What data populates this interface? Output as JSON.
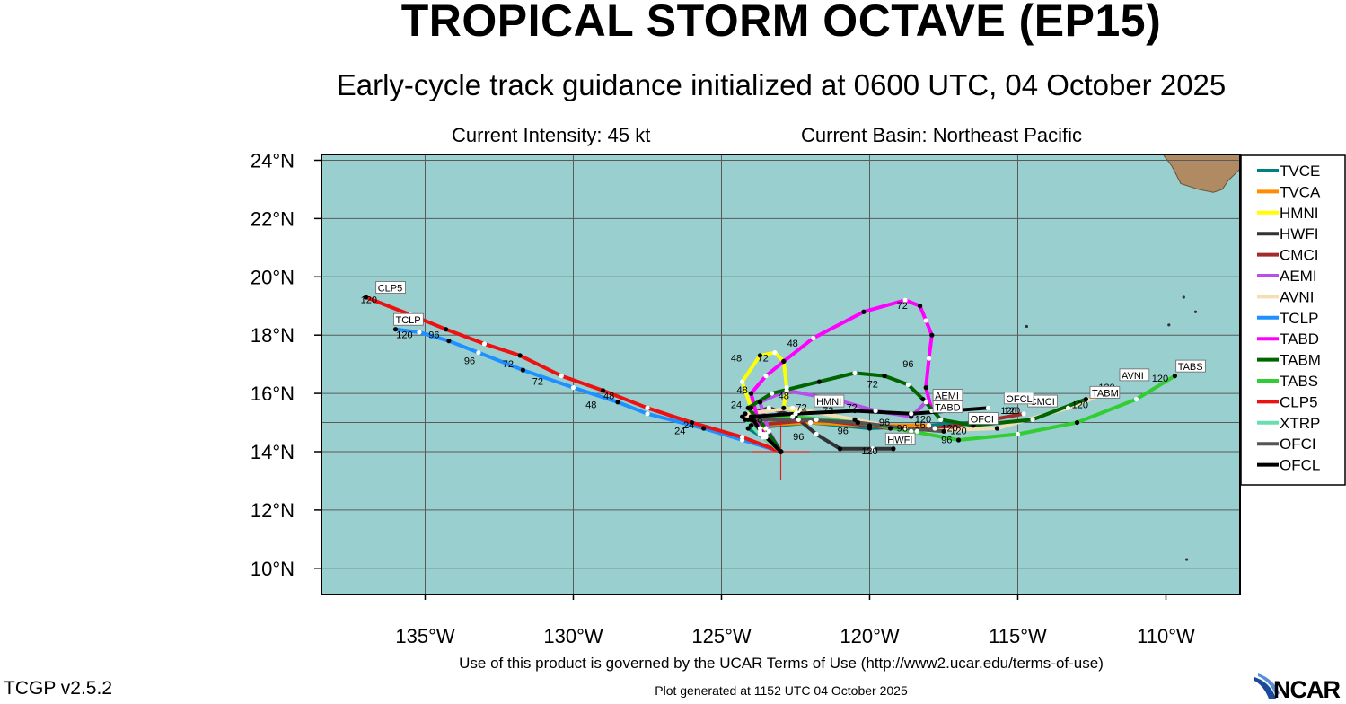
{
  "header": {
    "title": "TROPICAL STORM OCTAVE (EP15)",
    "subtitle": "Early-cycle track guidance initialized at 0600 UTC, 04 October 2025",
    "current_intensity": "Current Intensity: 45 kt",
    "current_basin": "Current Basin: Northeast Pacific"
  },
  "footer": {
    "terms": "Use of this product is governed by the UCAR Terms of Use (http://www2.ucar.edu/terms-of-use)",
    "version": "TCGP v2.5.2",
    "generated": "Plot generated at 1152 UTC   04 October 2025",
    "logo_text": "NCAR"
  },
  "colors": {
    "ocean": "#99cfcf",
    "land": "#b08a62",
    "grid": "#5a5a5a",
    "initial_position": "#e02020"
  },
  "chart_data": {
    "type": "map",
    "x_axis": {
      "range": [
        -138.5,
        -107.5
      ],
      "ticks": [
        -135,
        -130,
        -125,
        -120,
        -115,
        -110
      ],
      "tick_labels": [
        "135°W",
        "130°W",
        "125°W",
        "120°W",
        "115°W",
        "110°W"
      ]
    },
    "y_axis": {
      "range": [
        9.1,
        24.2
      ],
      "ticks": [
        10,
        12,
        14,
        16,
        18,
        20,
        22,
        24
      ],
      "tick_labels": [
        "10°N",
        "12°N",
        "14°N",
        "16°N",
        "18°N",
        "20°N",
        "22°N",
        "24°N"
      ]
    },
    "grid": true,
    "legend_placement": "right",
    "initial_position": {
      "lon": -123.0,
      "lat": 14.0
    },
    "land": [
      {
        "name": "Baja California tip",
        "points": [
          [
            -110.1,
            24.2
          ],
          [
            -109.8,
            23.8
          ],
          [
            -109.5,
            23.2
          ],
          [
            -108.9,
            23.0
          ],
          [
            -108.4,
            22.9
          ],
          [
            -108.1,
            23.0
          ],
          [
            -107.9,
            23.3
          ],
          [
            -107.5,
            23.7
          ],
          [
            -107.5,
            24.2
          ]
        ]
      }
    ],
    "islands": [
      {
        "lon": -109.0,
        "lat": 18.8
      },
      {
        "lon": -109.9,
        "lat": 18.35
      },
      {
        "lon": -114.7,
        "lat": 18.3
      },
      {
        "lon": -109.4,
        "lat": 19.3
      },
      {
        "lon": -109.3,
        "lat": 10.3
      }
    ],
    "series": [
      {
        "name": "TVCE",
        "color": "#008080",
        "points": [
          [
            -123.0,
            14.0
          ],
          [
            -123.6,
            14.5
          ],
          [
            -124.1,
            14.8
          ],
          [
            -122.0,
            15.0
          ],
          [
            -120.0,
            14.8
          ],
          [
            -118.0,
            14.9
          ],
          [
            -116.5,
            15.0
          ]
        ]
      },
      {
        "name": "TVCA",
        "color": "#ff8c00",
        "points": [
          [
            -123.0,
            14.0
          ],
          [
            -123.6,
            14.5
          ],
          [
            -124.0,
            14.9
          ],
          [
            -122.0,
            15.0
          ],
          [
            -120.0,
            14.9
          ],
          [
            -118.0,
            14.9
          ]
        ]
      },
      {
        "name": "HMNI",
        "color": "#ffff00",
        "points": [
          [
            -123.0,
            14.0
          ],
          [
            -123.5,
            14.6
          ],
          [
            -124.0,
            15.5
          ],
          [
            -124.3,
            16.4
          ],
          [
            -123.7,
            17.3
          ],
          [
            -123.2,
            17.4
          ],
          [
            -122.9,
            17.1
          ],
          [
            -122.8,
            16.2
          ],
          [
            -122.9,
            15.5
          ],
          [
            -122.4,
            15.4
          ]
        ],
        "labels": [
          {
            "text": "48",
            "lon": -124.5,
            "lat": 17.1
          },
          {
            "text": "72",
            "lon": -123.6,
            "lat": 17.1
          }
        ],
        "tag": {
          "text": "HMNI",
          "lon": -121.8,
          "lat": 15.6
        }
      },
      {
        "name": "HWFI",
        "color": "#333333",
        "points": [
          [
            -123.0,
            14.0
          ],
          [
            -123.6,
            14.6
          ],
          [
            -124.3,
            15.2
          ],
          [
            -123.4,
            15.5
          ],
          [
            -122.5,
            15.2
          ],
          [
            -121.8,
            14.6
          ],
          [
            -121.0,
            14.1
          ],
          [
            -119.9,
            14.1
          ],
          [
            -119.2,
            14.1
          ]
        ],
        "labels": [
          {
            "text": "96",
            "lon": -122.4,
            "lat": 14.4
          },
          {
            "text": "120",
            "lon": -120.0,
            "lat": 13.9
          }
        ],
        "tag": {
          "text": "HWFI",
          "lon": -119.4,
          "lat": 14.3
        }
      },
      {
        "name": "CMCI",
        "color": "#a52a2a",
        "points": [
          [
            -123.0,
            14.0
          ],
          [
            -123.5,
            14.5
          ],
          [
            -124.0,
            14.9
          ],
          [
            -121.8,
            15.1
          ],
          [
            -119.3,
            14.8
          ],
          [
            -117.8,
            14.8
          ],
          [
            -116.4,
            15.0
          ],
          [
            -114.8,
            15.3
          ]
        ],
        "labels": [
          {
            "text": "120",
            "lon": -115.2,
            "lat": 15.3
          }
        ],
        "tag": {
          "text": "CMCI",
          "lon": -114.6,
          "lat": 15.6
        }
      },
      {
        "name": "AEMI",
        "color": "#b84fe8",
        "points": [
          [
            -123.0,
            14.0
          ],
          [
            -123.4,
            14.7
          ],
          [
            -123.7,
            15.7
          ],
          [
            -122.8,
            16.1
          ],
          [
            -121.2,
            15.8
          ],
          [
            -119.8,
            15.4
          ],
          [
            -118.6,
            15.2
          ],
          [
            -118.1,
            15.7
          ]
        ],
        "tag": {
          "text": "AEMI",
          "lon": -117.8,
          "lat": 15.8
        }
      },
      {
        "name": "AVNI",
        "color": "#f5deb3",
        "points": [
          [
            -123.0,
            14.0
          ],
          [
            -123.6,
            14.6
          ],
          [
            -124.2,
            15.3
          ],
          [
            -122.6,
            15.5
          ],
          [
            -120.5,
            15.1
          ],
          [
            -118.4,
            14.7
          ],
          [
            -115.7,
            14.8
          ],
          [
            -113.3,
            15.5
          ],
          [
            -111.8,
            16.1
          ]
        ],
        "labels": [
          {
            "text": "120",
            "lon": -112.0,
            "lat": 16.1
          }
        ],
        "tag": {
          "text": "AVNI",
          "lon": -111.5,
          "lat": 16.5
        }
      },
      {
        "name": "TCLP",
        "color": "#1e90ff",
        "points": [
          [
            -123.0,
            14.0
          ],
          [
            -124.3,
            14.4
          ],
          [
            -125.6,
            14.8
          ],
          [
            -127.5,
            15.3
          ],
          [
            -128.5,
            15.7
          ],
          [
            -130.0,
            16.2
          ],
          [
            -131.7,
            16.8
          ],
          [
            -133.2,
            17.4
          ],
          [
            -134.2,
            17.8
          ],
          [
            -135.2,
            18.1
          ],
          [
            -136.0,
            18.2
          ]
        ],
        "labels": [
          {
            "text": "24",
            "lon": -126.4,
            "lat": 14.6
          },
          {
            "text": "48",
            "lon": -129.4,
            "lat": 15.5
          },
          {
            "text": "72",
            "lon": -131.2,
            "lat": 16.3
          },
          {
            "text": "96",
            "lon": -133.5,
            "lat": 17.0
          },
          {
            "text": "120",
            "lon": -135.7,
            "lat": 17.9
          }
        ],
        "tag": {
          "text": "TCLP",
          "lon": -136.0,
          "lat": 18.4
        }
      },
      {
        "name": "TABD",
        "color": "#ff00ff",
        "points": [
          [
            -123.0,
            14.0
          ],
          [
            -123.7,
            14.8
          ],
          [
            -124.0,
            16.0
          ],
          [
            -123.5,
            16.6
          ],
          [
            -122.9,
            17.1
          ],
          [
            -121.9,
            17.9
          ],
          [
            -120.2,
            18.8
          ],
          [
            -118.8,
            19.2
          ],
          [
            -118.3,
            19.0
          ],
          [
            -118.1,
            18.5
          ],
          [
            -117.9,
            18.0
          ],
          [
            -118.0,
            17.2
          ],
          [
            -118.1,
            16.2
          ],
          [
            -117.9,
            15.4
          ]
        ],
        "labels": [
          {
            "text": "48",
            "lon": -122.6,
            "lat": 17.6
          },
          {
            "text": "72",
            "lon": -118.9,
            "lat": 18.9
          },
          {
            "text": "96",
            "lon": -118.7,
            "lat": 16.9
          }
        ],
        "tag": {
          "text": "TABD",
          "lon": -117.8,
          "lat": 15.4
        }
      },
      {
        "name": "TABM",
        "color": "#006400",
        "points": [
          [
            -123.0,
            14.0
          ],
          [
            -123.5,
            14.8
          ],
          [
            -124.1,
            15.5
          ],
          [
            -123.3,
            16.0
          ],
          [
            -121.7,
            16.4
          ],
          [
            -120.5,
            16.7
          ],
          [
            -119.5,
            16.6
          ],
          [
            -118.7,
            16.3
          ],
          [
            -118.2,
            15.8
          ],
          [
            -117.6,
            15.1
          ],
          [
            -116.5,
            14.9
          ],
          [
            -114.5,
            15.1
          ],
          [
            -112.7,
            15.8
          ]
        ],
        "labels": [
          {
            "text": "72",
            "lon": -119.9,
            "lat": 16.2
          },
          {
            "text": "120",
            "lon": -112.9,
            "lat": 15.5
          }
        ],
        "tag": {
          "text": "TABM",
          "lon": -112.5,
          "lat": 15.9
        }
      },
      {
        "name": "TABS",
        "color": "#32cd32",
        "points": [
          [
            -123.0,
            14.0
          ],
          [
            -123.7,
            14.7
          ],
          [
            -124.1,
            15.1
          ],
          [
            -122.6,
            15.2
          ],
          [
            -120.4,
            15.0
          ],
          [
            -118.6,
            14.7
          ],
          [
            -117.0,
            14.4
          ],
          [
            -115.0,
            14.6
          ],
          [
            -113.0,
            15.0
          ],
          [
            -111.0,
            15.8
          ],
          [
            -109.7,
            16.6
          ]
        ],
        "labels": [
          {
            "text": "48",
            "lon": -123.8,
            "lat": 15.0
          },
          {
            "text": "96",
            "lon": -117.4,
            "lat": 14.3
          },
          {
            "text": "120",
            "lon": -110.2,
            "lat": 16.4
          }
        ],
        "tag": {
          "text": "TABS",
          "lon": -109.6,
          "lat": 16.8
        }
      },
      {
        "name": "CLP5",
        "color": "#ee1111",
        "points": [
          [
            -123.0,
            14.0
          ],
          [
            -124.3,
            14.5
          ],
          [
            -126.0,
            15.0
          ],
          [
            -127.5,
            15.5
          ],
          [
            -129.0,
            16.1
          ],
          [
            -130.4,
            16.6
          ],
          [
            -131.8,
            17.3
          ],
          [
            -133.0,
            17.7
          ],
          [
            -134.3,
            18.2
          ],
          [
            -135.5,
            18.7
          ],
          [
            -137.0,
            19.3
          ]
        ],
        "labels": [
          {
            "text": "24",
            "lon": -126.1,
            "lat": 14.8
          },
          {
            "text": "48",
            "lon": -128.8,
            "lat": 15.8
          },
          {
            "text": "72",
            "lon": -132.2,
            "lat": 16.9
          },
          {
            "text": "96",
            "lon": -134.7,
            "lat": 17.9
          },
          {
            "text": "120",
            "lon": -136.9,
            "lat": 19.1
          }
        ],
        "tag": {
          "text": "CLP5",
          "lon": -136.6,
          "lat": 19.5
        }
      },
      {
        "name": "XTRP",
        "color": "#66e0b0",
        "points": [
          [
            -123.0,
            14.0
          ],
          [
            -123.7,
            14.6
          ],
          [
            -124.2,
            15.1
          ]
        ]
      },
      {
        "name": "OFCI",
        "color": "#555555",
        "points": [
          [
            -123.0,
            14.0
          ],
          [
            -123.6,
            14.6
          ],
          [
            -124.0,
            15.1
          ],
          [
            -122.4,
            15.1
          ],
          [
            -120.4,
            15.0
          ],
          [
            -118.8,
            14.8
          ],
          [
            -117.5,
            14.7
          ]
        ],
        "labels": [
          {
            "text": "120",
            "lon": -117.0,
            "lat": 14.6
          }
        ],
        "tag": {
          "text": "OFCI",
          "lon": -116.6,
          "lat": 15.0
        }
      },
      {
        "name": "OFCL",
        "color": "#000000",
        "points": [
          [
            -123.0,
            14.0
          ],
          [
            -123.6,
            14.6
          ],
          [
            -124.0,
            15.2
          ],
          [
            -122.5,
            15.3
          ],
          [
            -120.5,
            15.4
          ],
          [
            -118.6,
            15.3
          ],
          [
            -117.3,
            15.4
          ],
          [
            -116.0,
            15.5
          ]
        ],
        "labels": [
          {
            "text": "120",
            "lon": -115.3,
            "lat": 15.3
          }
        ],
        "tag": {
          "text": "OFCL",
          "lon": -115.4,
          "lat": 15.7
        }
      }
    ],
    "hour_labels": [
      {
        "text": "24",
        "lon": -124.5,
        "lat": 15.5
      },
      {
        "text": "48",
        "lon": -124.3,
        "lat": 16.0
      },
      {
        "text": "48",
        "lon": -122.9,
        "lat": 15.8
      },
      {
        "text": "72",
        "lon": -122.3,
        "lat": 15.4
      },
      {
        "text": "72",
        "lon": -121.4,
        "lat": 15.3
      },
      {
        "text": "72",
        "lon": -120.6,
        "lat": 15.4
      },
      {
        "text": "96",
        "lon": -120.9,
        "lat": 14.6
      },
      {
        "text": "96",
        "lon": -119.5,
        "lat": 14.9
      },
      {
        "text": "96",
        "lon": -118.9,
        "lat": 14.7
      },
      {
        "text": "96",
        "lon": -118.3,
        "lat": 14.8
      },
      {
        "text": "120",
        "lon": -117.3,
        "lat": 14.7
      },
      {
        "text": "120",
        "lon": -118.2,
        "lat": 15.0
      }
    ]
  },
  "legend": {
    "items": [
      {
        "name": "TVCE",
        "color": "#008080"
      },
      {
        "name": "TVCA",
        "color": "#ff8c00"
      },
      {
        "name": "HMNI",
        "color": "#ffff00"
      },
      {
        "name": "HWFI",
        "color": "#333333"
      },
      {
        "name": "CMCI",
        "color": "#a52a2a"
      },
      {
        "name": "AEMI",
        "color": "#b84fe8"
      },
      {
        "name": "AVNI",
        "color": "#f5deb3"
      },
      {
        "name": "TCLP",
        "color": "#1e90ff"
      },
      {
        "name": "TABD",
        "color": "#ff00ff"
      },
      {
        "name": "TABM",
        "color": "#006400"
      },
      {
        "name": "TABS",
        "color": "#32cd32"
      },
      {
        "name": "CLP5",
        "color": "#ee1111"
      },
      {
        "name": "XTRP",
        "color": "#66e0b0"
      },
      {
        "name": "OFCI",
        "color": "#555555"
      },
      {
        "name": "OFCL",
        "color": "#000000"
      }
    ]
  }
}
